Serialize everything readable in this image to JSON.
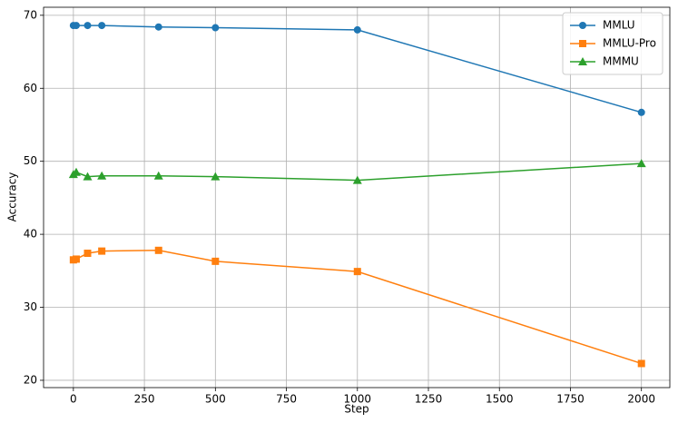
{
  "chart_data": {
    "type": "line",
    "x_label": "Step",
    "y_label": "Accuracy",
    "x": [
      0,
      10,
      50,
      100,
      300,
      500,
      1000,
      2000
    ],
    "series": [
      {
        "name": "MMLU",
        "color": "#1f77b4",
        "marker": "circle",
        "values": [
          68.6,
          68.6,
          68.6,
          68.6,
          68.4,
          68.3,
          68.0,
          56.7
        ]
      },
      {
        "name": "MMLU-Pro",
        "color": "#ff7f0e",
        "marker": "square",
        "values": [
          36.5,
          36.6,
          37.4,
          37.7,
          37.8,
          36.3,
          34.9,
          22.3
        ]
      },
      {
        "name": "MMMU",
        "color": "#2ca02c",
        "marker": "triangle",
        "values": [
          48.2,
          48.5,
          47.9,
          48.0,
          48.0,
          47.9,
          47.4,
          49.7
        ]
      }
    ],
    "xlim": [
      -105,
      2100
    ],
    "ylim": [
      19.0,
      71.1
    ],
    "xticks": [
      0,
      250,
      500,
      750,
      1000,
      1250,
      1500,
      1750,
      2000
    ],
    "yticks": [
      20,
      30,
      40,
      50,
      60,
      70
    ],
    "grid": true,
    "legend": "upper right"
  }
}
